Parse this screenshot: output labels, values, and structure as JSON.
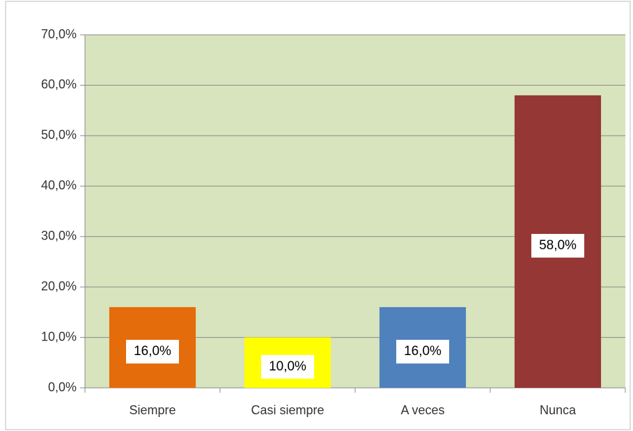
{
  "chart_data": {
    "type": "bar",
    "categories": [
      "Siempre",
      "Casi siempre",
      "A veces",
      "Nunca"
    ],
    "values": [
      16,
      10,
      16,
      58
    ],
    "value_labels": [
      "16,0%",
      "10,0%",
      "16,0%",
      "58,0%"
    ],
    "colors": [
      "#e46c0a",
      "#ffff00",
      "#4f81bd",
      "#953735"
    ],
    "plot_background": "#d7e4bd",
    "ylim": [
      0,
      70
    ],
    "yticks": [
      {
        "value": 0,
        "label": "0,0%"
      },
      {
        "value": 10,
        "label": "10,0%"
      },
      {
        "value": 20,
        "label": "20,0%"
      },
      {
        "value": 30,
        "label": "30,0%"
      },
      {
        "value": 40,
        "label": "40,0%"
      },
      {
        "value": 50,
        "label": "50,0%"
      },
      {
        "value": 60,
        "label": "60,0%"
      },
      {
        "value": 70,
        "label": "70,0%"
      }
    ],
    "grid": true
  }
}
